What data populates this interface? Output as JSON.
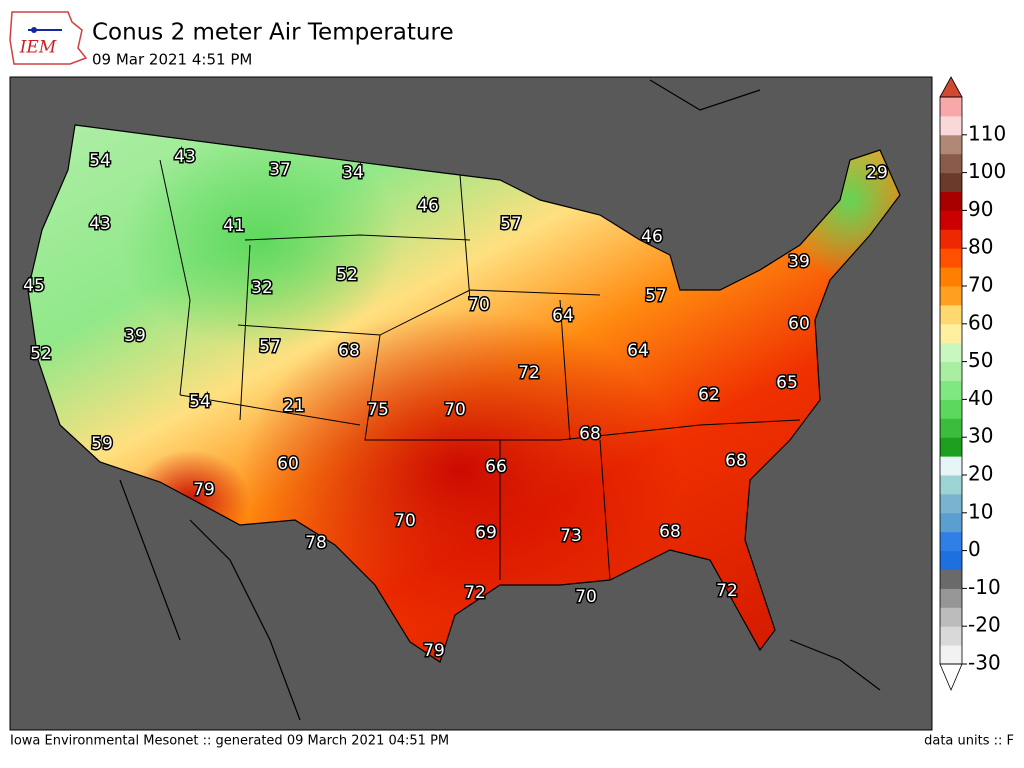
{
  "header": {
    "logo": "IEM",
    "title": "Conus 2 meter Air Temperature",
    "subtitle": "09 Mar 2021 4:51 PM"
  },
  "map": {
    "station_values": [
      54,
      43,
      37,
      34,
      46,
      57,
      46,
      29,
      43,
      41,
      52,
      32,
      39,
      45,
      70,
      64,
      57,
      60,
      39,
      57,
      68,
      64,
      52,
      72,
      65,
      62,
      54,
      21,
      75,
      70,
      68,
      59,
      60,
      66,
      68,
      79,
      70,
      69,
      73,
      68,
      78,
      72,
      70,
      72,
      79
    ],
    "colorbar": {
      "lim": [
        -30,
        120
      ],
      "ticks": [
        -30,
        -20,
        -10,
        0,
        10,
        20,
        30,
        40,
        50,
        60,
        70,
        80,
        90,
        100,
        110
      ],
      "colors": [
        "#f2f2f2",
        "#d9d9d9",
        "#bcbcbc",
        "#969696",
        "#6a6a6a",
        "#1e6fe0",
        "#2f7fe6",
        "#5b9fd0",
        "#78b4d0",
        "#9cd4d4",
        "#e6f6f6",
        "#1e9e1e",
        "#3cbc3c",
        "#5cd85c",
        "#80e880",
        "#a8f0a0",
        "#c8f8c0",
        "#fff0a0",
        "#ffd870",
        "#ffa020",
        "#ff8000",
        "#ff5000",
        "#ee2800",
        "#cc0000",
        "#a80000",
        "#6b3a2a",
        "#8a5a4a",
        "#b08878",
        "#f8d8d8",
        "#f8a8a8"
      ],
      "over_color": "#d04a30",
      "under_color": "#ffffff"
    }
  },
  "footer": {
    "left": "Iowa Environmental Mesonet :: generated 09 March 2021 04:51 PM",
    "right": "data units :: F"
  }
}
